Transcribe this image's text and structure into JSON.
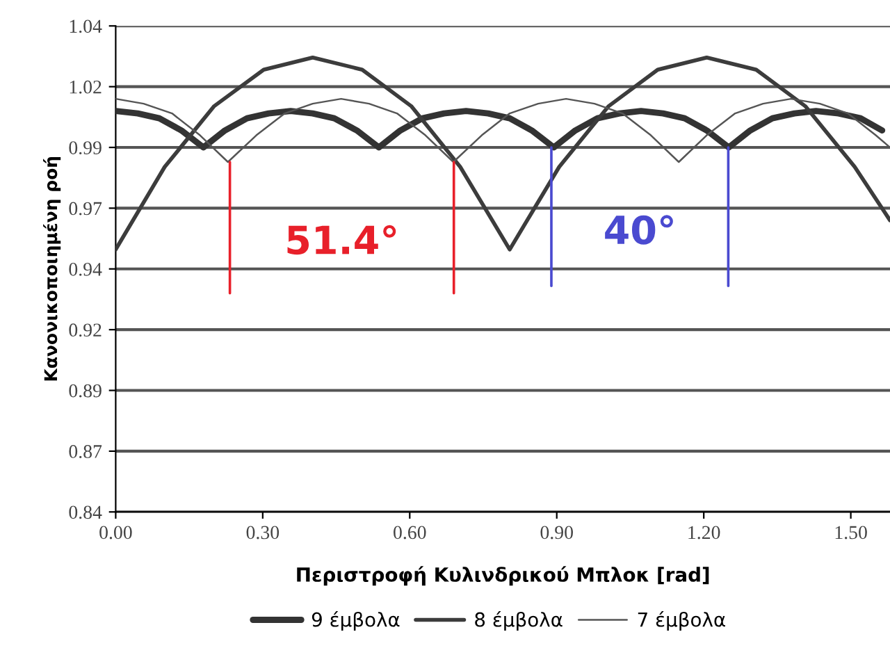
{
  "chart_data": {
    "type": "line",
    "xlabel": "Περιστροφή Κυλινδρικού Μπλοκ [rad]",
    "ylabel": "Κανονικοποιημένη ροή",
    "xlim": [
      0,
      1.58
    ],
    "xticks": [
      {
        "value": 0,
        "label": "0.00"
      },
      {
        "value": 0.3,
        "label": "0.30"
      },
      {
        "value": 0.6,
        "label": "0.60"
      },
      {
        "value": 0.9,
        "label": "0.90"
      },
      {
        "value": 1.2,
        "label": "1.20"
      },
      {
        "value": 1.5,
        "label": "1.50"
      }
    ],
    "ylim": [
      0.84,
      1.04
    ],
    "yticks": [
      {
        "value": 0.84,
        "label": "0.84"
      },
      {
        "value": 0.865,
        "label": "0.87"
      },
      {
        "value": 0.89,
        "label": "0.89"
      },
      {
        "value": 0.915,
        "label": "0.92"
      },
      {
        "value": 0.94,
        "label": "0.94"
      },
      {
        "value": 0.965,
        "label": "0.97"
      },
      {
        "value": 0.99,
        "label": "0.99"
      },
      {
        "value": 1.015,
        "label": "1.02"
      },
      {
        "value": 1.04,
        "label": "1.04"
      }
    ],
    "grid": "y",
    "legend": "bottom",
    "marker": "none",
    "line_style": "solid",
    "series": [
      {
        "name": "9 έμβολα",
        "color": "#333333",
        "x": [
          0,
          0.045,
          0.089,
          0.134,
          0.179,
          0.223,
          0.268,
          0.312,
          0.357,
          0.402,
          0.446,
          0.492,
          0.537,
          0.581,
          0.626,
          0.67,
          0.715,
          0.76,
          0.804,
          0.849,
          0.894,
          0.938,
          0.983,
          1.028,
          1.072,
          1.117,
          1.161,
          1.206,
          1.251,
          1.295,
          1.34,
          1.385,
          1.429,
          1.475,
          1.52,
          1.564
        ],
        "values": [
          1.005,
          1.004,
          1.002,
          0.997,
          0.99,
          0.997,
          1.002,
          1.004,
          1.005,
          1.004,
          1.002,
          0.997,
          0.99,
          0.997,
          1.002,
          1.004,
          1.005,
          1.004,
          1.002,
          0.997,
          0.99,
          0.997,
          1.002,
          1.004,
          1.005,
          1.004,
          1.002,
          0.997,
          0.99,
          0.997,
          1.002,
          1.004,
          1.005,
          1.004,
          1.002,
          0.997
        ]
      },
      {
        "name": "8 έμβολα",
        "color": "#3c3c3c",
        "x": [
          0,
          0.1,
          0.201,
          0.302,
          0.402,
          0.503,
          0.603,
          0.703,
          0.804,
          0.905,
          1.006,
          1.106,
          1.206,
          1.307,
          1.407,
          1.508,
          1.58
        ],
        "values": [
          0.948,
          0.982,
          1.007,
          1.022,
          1.027,
          1.022,
          1.007,
          0.982,
          0.948,
          0.982,
          1.007,
          1.022,
          1.027,
          1.022,
          1.007,
          0.982,
          0.96
        ]
      },
      {
        "name": "7 έμβολα",
        "color": "#555555",
        "x": [
          0,
          0.057,
          0.115,
          0.172,
          0.229,
          0.287,
          0.345,
          0.402,
          0.46,
          0.517,
          0.574,
          0.632,
          0.689,
          0.747,
          0.804,
          0.862,
          0.919,
          0.977,
          1.034,
          1.092,
          1.149,
          1.206,
          1.264,
          1.321,
          1.378,
          1.437,
          1.494,
          1.551,
          1.58
        ],
        "values": [
          1.01,
          1.008,
          1.004,
          0.995,
          0.984,
          0.995,
          1.004,
          1.008,
          1.01,
          1.008,
          1.004,
          0.995,
          0.984,
          0.995,
          1.004,
          1.008,
          1.01,
          1.008,
          1.004,
          0.995,
          0.984,
          0.995,
          1.004,
          1.008,
          1.01,
          1.008,
          1.004,
          0.995,
          0.99
        ]
      },
      {
        "color": "#e8202a",
        "x": [
          0.233,
          0.233
        ],
        "values": [
          0.93,
          0.984
        ]
      },
      {
        "color": "#e8202a",
        "x": [
          0.69,
          0.69
        ],
        "values": [
          0.93,
          0.984
        ]
      },
      {
        "color": "#4a4ad0",
        "x": [
          0.889,
          0.889
        ],
        "values": [
          0.933,
          0.99
        ]
      },
      {
        "color": "#4a4ad0",
        "x": [
          1.25,
          1.25
        ],
        "values": [
          0.933,
          0.99
        ]
      }
    ],
    "annotations": [
      "51.4°",
      "40°"
    ]
  }
}
